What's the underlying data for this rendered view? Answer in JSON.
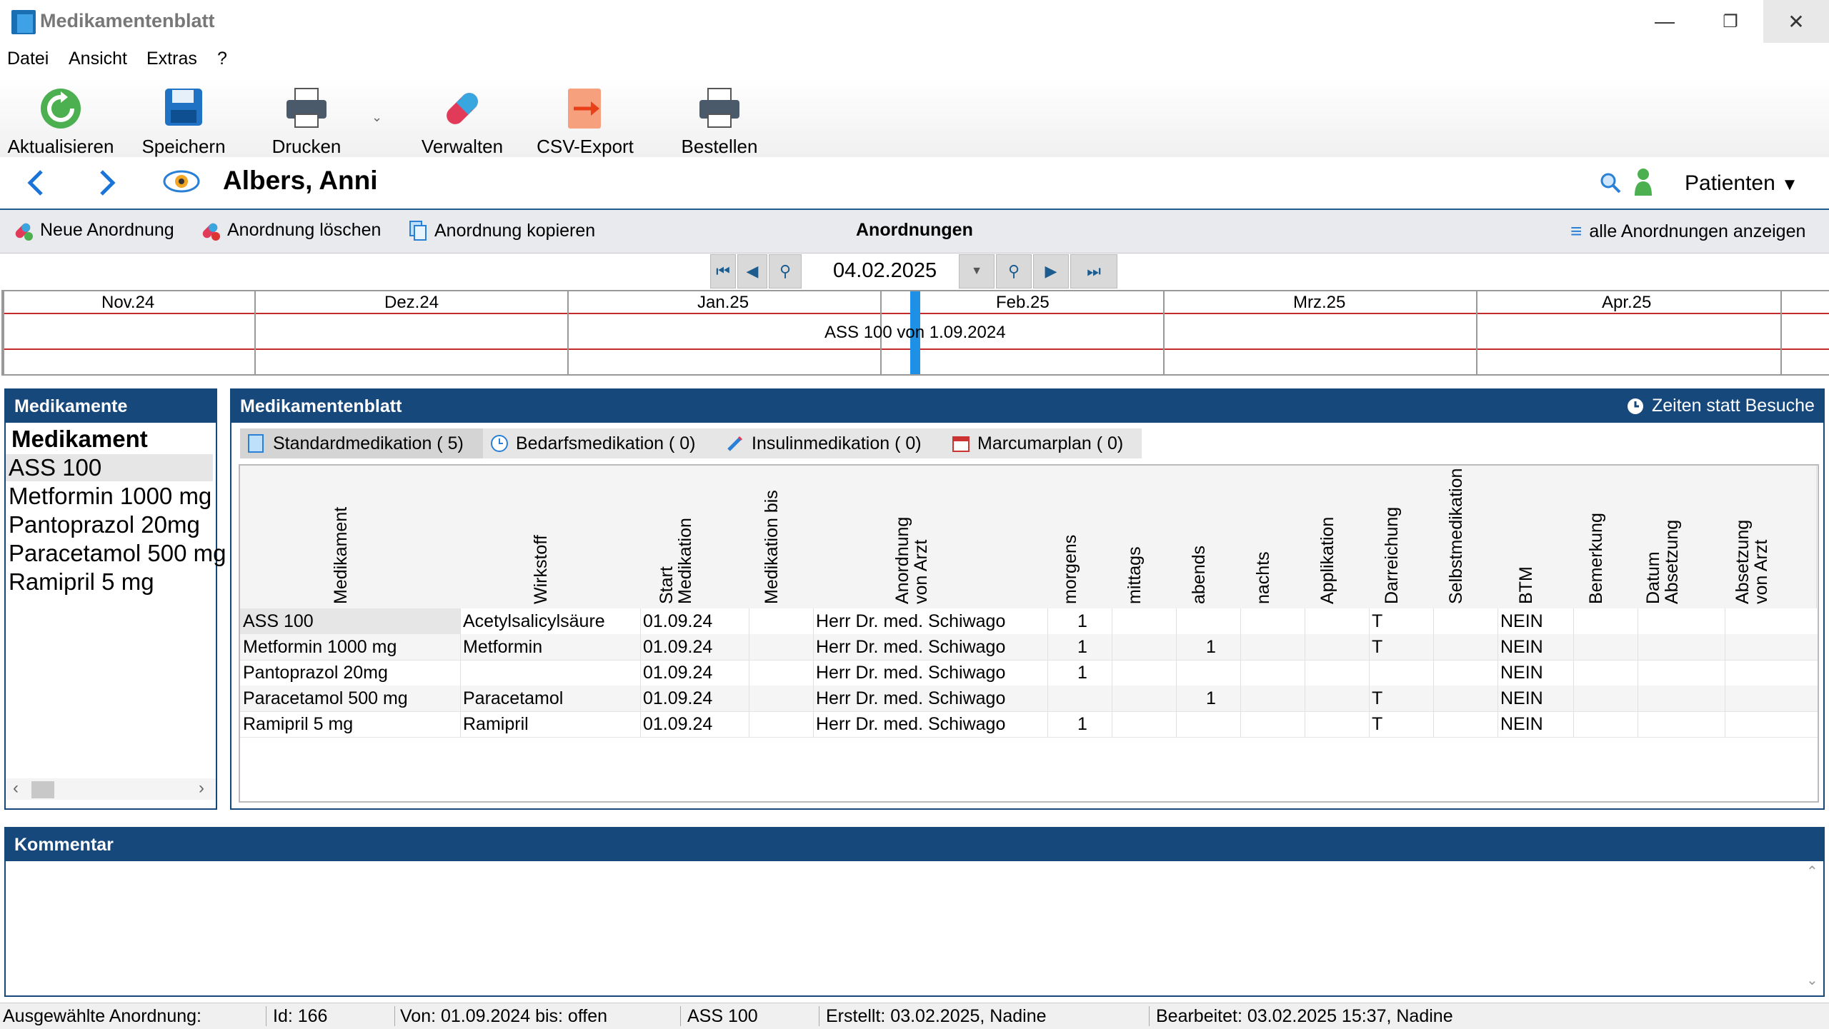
{
  "window": {
    "title": "Medikamentenblatt"
  },
  "menu": [
    "Datei",
    "Ansicht",
    "Extras",
    "?"
  ],
  "toolbar": {
    "refresh": "Aktualisieren",
    "save": "Speichern",
    "print": "Drucken",
    "manage": "Verwalten",
    "csv": "CSV-Export",
    "order": "Bestellen"
  },
  "nav": {
    "patient_name": "Albers, Anni",
    "patients_label": "Patienten"
  },
  "orders_bar": {
    "new": "Neue Anordnung",
    "delete": "Anordnung löschen",
    "copy": "Anordnung kopieren",
    "title": "Anordnungen",
    "show_all": "alle Anordnungen anzeigen"
  },
  "date_nav": {
    "date": "04.02.2025"
  },
  "timeline": {
    "months": [
      "Nov.24",
      "Dez.24",
      "Jan.25",
      "Feb.25",
      "Mrz.25",
      "Apr.25"
    ],
    "entry": "ASS 100 von 1.09.2024"
  },
  "medications_panel": {
    "title": "Medikamente",
    "header": "Medikament",
    "items": [
      "ASS 100",
      "Metformin 1000 mg",
      "Pantoprazol 20mg",
      "Paracetamol 500 mg",
      "Ramipril 5 mg"
    ]
  },
  "sheet": {
    "title": "Medikamentenblatt",
    "times_toggle": "Zeiten statt Besuche",
    "tabs": [
      "Standardmedikation ( 5)",
      "Bedarfsmedikation ( 0)",
      "Insulinmedikation ( 0)",
      "Marcumarplan ( 0)"
    ],
    "columns": [
      "Medikament",
      "Wirkstoff",
      "Start Medikation",
      "Medikation bis",
      "Anordnung von Arzt",
      "morgens",
      "mittags",
      "abends",
      "nachts",
      "Applikation",
      "Darreichung",
      "Selbstmedikation",
      "BTM",
      "Bemerkung",
      "Datum Absetzung",
      "Absetzung von Arzt"
    ],
    "rows": [
      [
        "ASS 100",
        "Acetylsalicylsäure",
        "01.09.24",
        "",
        "Herr Dr. med. Schiwago",
        "1",
        "",
        "",
        "",
        "",
        "T",
        "",
        "NEIN",
        "",
        "",
        ""
      ],
      [
        "Metformin 1000 mg",
        "Metformin",
        "01.09.24",
        "",
        "Herr Dr. med. Schiwago",
        "1",
        "",
        "1",
        "",
        "",
        "T",
        "",
        "NEIN",
        "",
        "",
        ""
      ],
      [
        "Pantoprazol 20mg",
        "",
        "01.09.24",
        "",
        "Herr Dr. med. Schiwago",
        "1",
        "",
        "",
        "",
        "",
        "",
        "",
        "NEIN",
        "",
        "",
        ""
      ],
      [
        "Paracetamol 500 mg",
        "Paracetamol",
        "01.09.24",
        "",
        "Herr Dr. med. Schiwago",
        "",
        "",
        "1",
        "",
        "",
        "T",
        "",
        "NEIN",
        "",
        "",
        ""
      ],
      [
        "Ramipril 5 mg",
        "Ramipril",
        "01.09.24",
        "",
        "Herr Dr. med. Schiwago",
        "1",
        "",
        "",
        "",
        "",
        "T",
        "",
        "NEIN",
        "",
        "",
        ""
      ]
    ]
  },
  "comment": {
    "title": "Kommentar"
  },
  "status": {
    "selected": "Ausgewählte Anordnung:",
    "id": "Id: 166",
    "range": "Von: 01.09.2024 bis: offen",
    "drug": "ASS 100",
    "created": "Erstellt: 03.02.2025, Nadine",
    "edited": "Bearbeitet: 03.02.2025 15:37, Nadine"
  },
  "colors": {
    "accent": "#17487c",
    "timeline_line": "#c42a2a",
    "current_marker": "#1e90e6"
  }
}
